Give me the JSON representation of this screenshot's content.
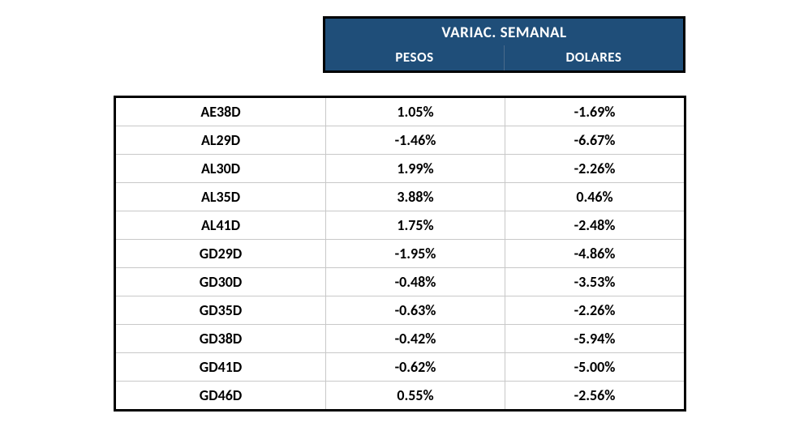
{
  "header": {
    "title": "VARIAC. SEMANAL",
    "col1": "PESOS",
    "col2": "DOLARES",
    "bg_color": "#1f4e79",
    "text_color": "#ffffff"
  },
  "table": {
    "border_color": "#000000",
    "row_divider_color": "#c8c8c8",
    "font_weight": "bold",
    "rows": [
      {
        "ticker": "AE38D",
        "pesos": "1.05%",
        "dolares": "-1.69%"
      },
      {
        "ticker": "AL29D",
        "pesos": "-1.46%",
        "dolares": "-6.67%"
      },
      {
        "ticker": "AL30D",
        "pesos": "1.99%",
        "dolares": "-2.26%"
      },
      {
        "ticker": "AL35D",
        "pesos": "3.88%",
        "dolares": "0.46%"
      },
      {
        "ticker": "AL41D",
        "pesos": "1.75%",
        "dolares": "-2.48%"
      },
      {
        "ticker": "GD29D",
        "pesos": "-1.95%",
        "dolares": "-4.86%"
      },
      {
        "ticker": "GD30D",
        "pesos": "-0.48%",
        "dolares": "-3.53%"
      },
      {
        "ticker": "GD35D",
        "pesos": "-0.63%",
        "dolares": "-2.26%"
      },
      {
        "ticker": "GD38D",
        "pesos": "-0.42%",
        "dolares": "-5.94%"
      },
      {
        "ticker": "GD41D",
        "pesos": "-0.62%",
        "dolares": "-5.00%"
      },
      {
        "ticker": "GD46D",
        "pesos": "0.55%",
        "dolares": "-2.56%"
      }
    ]
  }
}
